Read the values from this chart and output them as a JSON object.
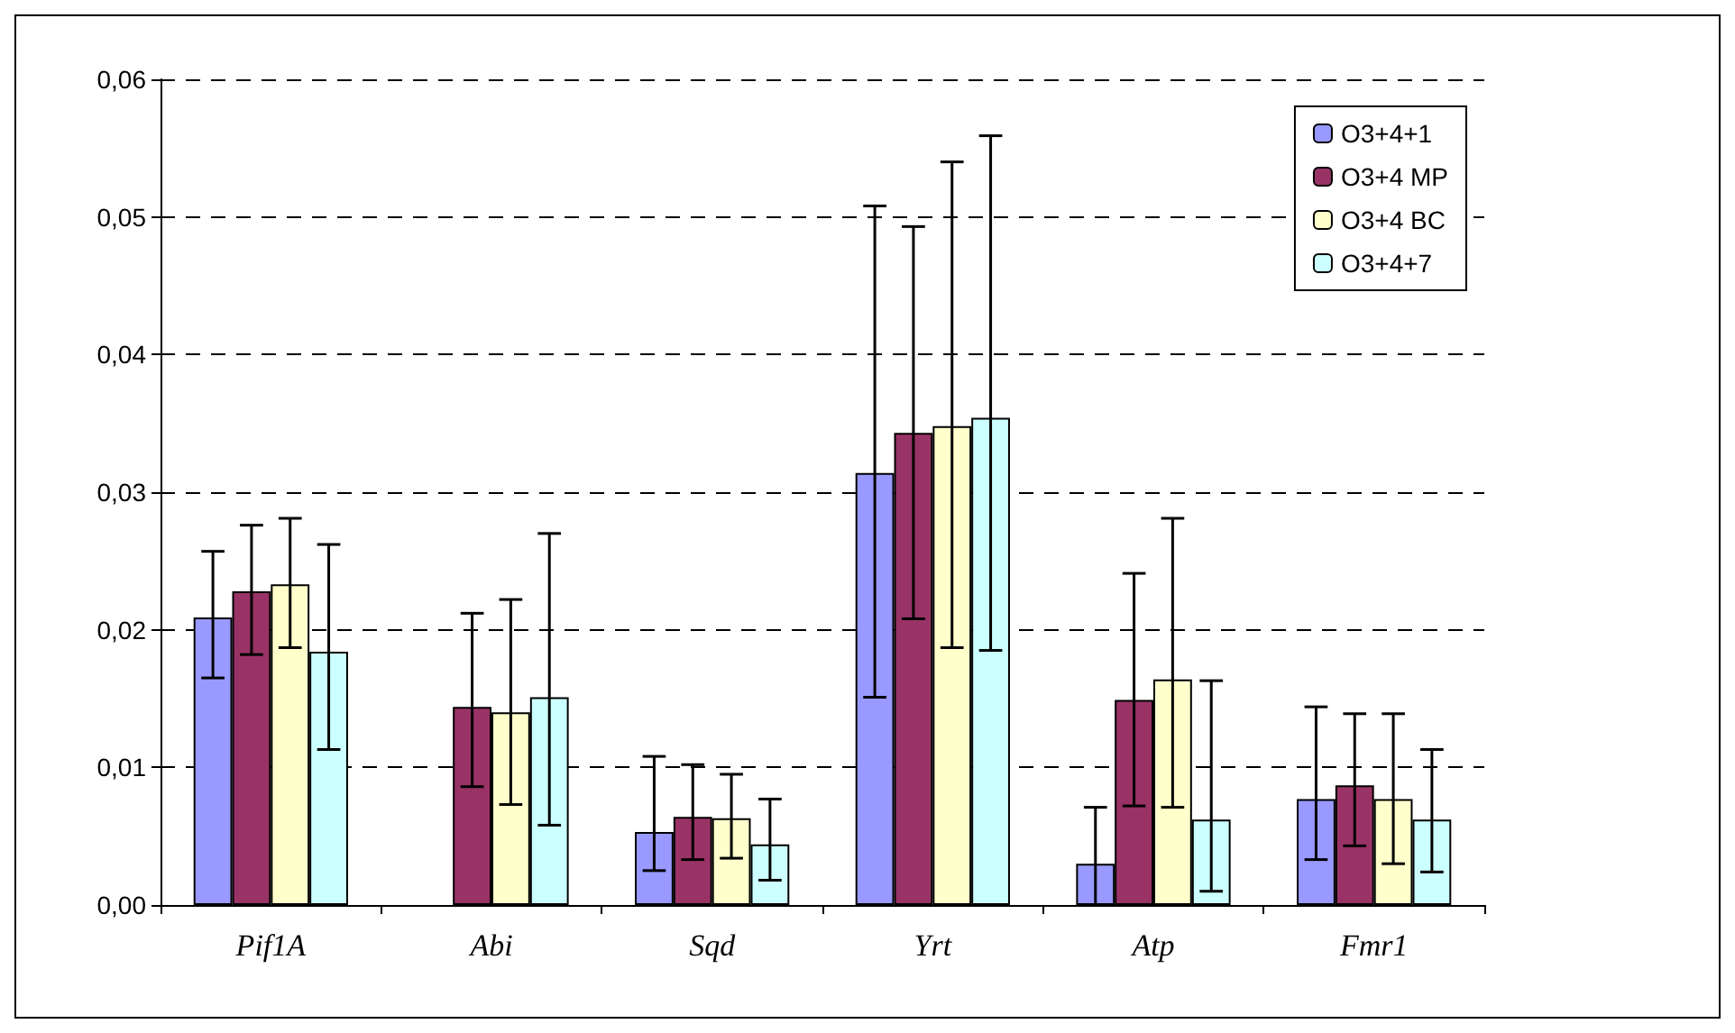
{
  "chart_data": {
    "type": "bar",
    "categories": [
      "Pif1A",
      "Abi",
      "Sqd",
      "Yrt",
      "Atp",
      "Fmr1"
    ],
    "series": [
      {
        "name": "O3+4+1",
        "color": "#9999ff",
        "values": [
          0.0209,
          null,
          0.0053,
          0.0314,
          0.003,
          0.0077
        ],
        "errors": [
          [
            0.0165,
            0.0257
          ],
          null,
          [
            0.0025,
            0.0108
          ],
          [
            0.0151,
            0.0508
          ],
          [
            0.0,
            0.0071
          ],
          [
            0.0033,
            0.0144
          ]
        ]
      },
      {
        "name": "O3+4 MP",
        "color": "#993366",
        "values": [
          0.0228,
          0.0144,
          0.0064,
          0.0343,
          0.0149,
          0.0087
        ],
        "errors": [
          [
            0.0182,
            0.0276
          ],
          [
            0.0086,
            0.0212
          ],
          [
            0.0033,
            0.0102
          ],
          [
            0.0208,
            0.0493
          ],
          [
            0.0072,
            0.0241
          ],
          [
            0.0043,
            0.0139
          ]
        ]
      },
      {
        "name": "O3+4 BC",
        "color": "#ffffcc",
        "values": [
          0.0233,
          0.014,
          0.0063,
          0.0348,
          0.0164,
          0.0077
        ],
        "errors": [
          [
            0.0187,
            0.0281
          ],
          [
            0.0073,
            0.0222
          ],
          [
            0.0034,
            0.0095
          ],
          [
            0.0187,
            0.054
          ],
          [
            0.0071,
            0.0281
          ],
          [
            0.003,
            0.0139
          ]
        ]
      },
      {
        "name": "O3+4+7",
        "color": "#ccffff",
        "values": [
          0.0184,
          0.0151,
          0.0044,
          0.0354,
          0.0062,
          0.0062
        ],
        "errors": [
          [
            0.0113,
            0.0262
          ],
          [
            0.0058,
            0.027
          ],
          [
            0.0018,
            0.0077
          ],
          [
            0.0185,
            0.0559
          ],
          [
            0.001,
            0.0163
          ],
          [
            0.0024,
            0.0113
          ]
        ]
      }
    ],
    "ylim": [
      0,
      0.06
    ],
    "yticks": [
      {
        "value": 0,
        "label": "0,00"
      },
      {
        "value": 0.01,
        "label": "0,01"
      },
      {
        "value": 0.02,
        "label": "0,02"
      },
      {
        "value": 0.03,
        "label": "0,03"
      },
      {
        "value": 0.04,
        "label": "0,04"
      },
      {
        "value": 0.05,
        "label": "0,05"
      },
      {
        "value": 0.06,
        "label": "0,06"
      }
    ],
    "grid": "y",
    "legend": "top right"
  }
}
